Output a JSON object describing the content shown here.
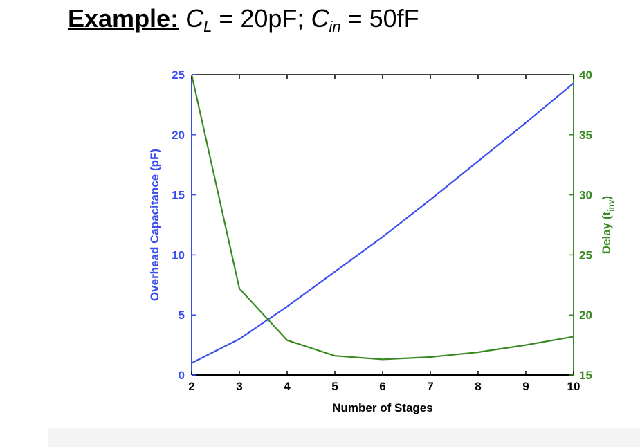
{
  "title": {
    "lead": "Example:",
    "cl_var": "C",
    "cl_sub": "L",
    "cl_val": " = 20pF; ",
    "cin_var": "C",
    "cin_sub": "in",
    "cin_val": " = 50fF"
  },
  "chart_data": {
    "type": "line",
    "x": [
      2,
      3,
      4,
      5,
      6,
      7,
      8,
      9,
      10
    ],
    "xlabel": "Number of Stages",
    "xlim": [
      2,
      10
    ],
    "xticks": [
      2,
      3,
      4,
      5,
      6,
      7,
      8,
      9,
      10
    ],
    "ylabel_left": "Overhead Capacitance (pF)",
    "ylim_left": [
      0,
      25
    ],
    "yticks_left": [
      0,
      5,
      10,
      15,
      20,
      25
    ],
    "ylabel_right_main": "Delay (t",
    "ylabel_right_sub": "inv",
    "ylabel_right_end": ")",
    "ylim_right": [
      15,
      40
    ],
    "yticks_right": [
      15,
      20,
      25,
      30,
      35,
      40
    ],
    "grid": false,
    "series": [
      {
        "axis": "left",
        "color": "#3a4df0",
        "values": [
          1.0,
          3.0,
          5.7,
          8.6,
          11.5,
          14.6,
          17.8,
          21.0,
          24.3
        ]
      },
      {
        "axis": "right",
        "color": "#3a8a23",
        "values": [
          40.0,
          22.2,
          17.9,
          16.6,
          16.3,
          16.5,
          16.9,
          17.5,
          18.2
        ]
      }
    ]
  }
}
